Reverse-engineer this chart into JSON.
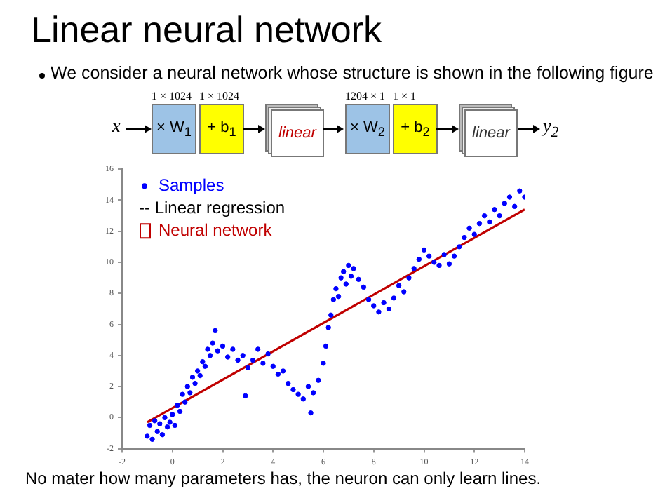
{
  "chart_data": {
    "type": "scatter",
    "title": "Linear neural network",
    "subtitle": "We consider a neural network whose structure is shown in the following figure",
    "annotations": [
      "-- Linear regression",
      "x",
      "1 × 1024",
      "× W$_{1}$",
      "1 × 1024",
      "+ b$_{1}$",
      "linear",
      "1204 × 1",
      "× W$_{2}$",
      "1 × 1",
      "+ b$_{2}$",
      "linear",
      "y$_{2}$",
      "No mater how many parameters has, the neuron can only learn lines."
    ],
    "xlim": [
      -2,
      14
    ],
    "xticks": [
      -2,
      0,
      2,
      4,
      6,
      8,
      10,
      12,
      14
    ],
    "ylim": [
      -2,
      16
    ],
    "yticks": [
      -2,
      0,
      2,
      4,
      6,
      8,
      10,
      12,
      14,
      16
    ],
    "grid": false,
    "legend": "top left",
    "series": [
      {
        "name": "Samples",
        "marker": "circle",
        "color": "#0000ff",
        "x": [
          -1,
          -0.9,
          -0.8,
          -0.7,
          -0.6,
          -0.5,
          -0.4,
          -0.3,
          -0.2,
          -0.1,
          0,
          0.1,
          0.2,
          0.3,
          0.4,
          0.5,
          0.6,
          0.7,
          0.8,
          0.9,
          1.0,
          1.1,
          1.2,
          1.3,
          1.4,
          1.5,
          1.6,
          1.7,
          1.8,
          2.0,
          2.2,
          2.4,
          2.6,
          2.8,
          2.9,
          3.0,
          3.2,
          3.4,
          3.6,
          3.8,
          4.0,
          4.2,
          4.4,
          4.6,
          4.8,
          5.0,
          5.2,
          5.4,
          5.5,
          5.6,
          5.8,
          6.0,
          6.1,
          6.2,
          6.3,
          6.4,
          6.5,
          6.6,
          6.7,
          6.8,
          6.9,
          7.0,
          7.1,
          7.2,
          7.4,
          7.6,
          7.8,
          8.0,
          8.2,
          8.4,
          8.6,
          8.8,
          9.0,
          9.2,
          9.4,
          9.6,
          9.8,
          10.0,
          10.2,
          10.4,
          10.6,
          10.8,
          11.0,
          11.2,
          11.4,
          11.6,
          11.8,
          12.0,
          12.2,
          12.4,
          12.6,
          12.8,
          13.0,
          13.2,
          13.4,
          13.6,
          13.8,
          14.0
        ],
        "values": [
          -1.2,
          -0.5,
          -1.4,
          -0.2,
          -0.9,
          -0.4,
          -1.1,
          0.0,
          -0.6,
          -0.3,
          0.2,
          -0.5,
          0.8,
          0.4,
          1.5,
          1.0,
          2.0,
          1.6,
          2.6,
          2.2,
          3.0,
          2.7,
          3.6,
          3.3,
          4.4,
          4.0,
          4.8,
          5.6,
          4.3,
          4.6,
          3.9,
          4.4,
          3.7,
          4.0,
          1.4,
          3.2,
          3.7,
          4.4,
          3.5,
          4.1,
          3.3,
          2.8,
          3.0,
          2.2,
          1.8,
          1.5,
          1.2,
          2.0,
          0.3,
          1.6,
          2.4,
          3.5,
          4.6,
          5.8,
          6.6,
          7.6,
          8.3,
          7.8,
          9.0,
          9.4,
          8.6,
          9.8,
          9.1,
          9.6,
          8.9,
          8.4,
          7.6,
          7.2,
          6.8,
          7.4,
          7.0,
          7.7,
          8.5,
          8.1,
          9.0,
          9.6,
          10.2,
          10.8,
          10.4,
          10.0,
          9.8,
          10.5,
          9.9,
          10.4,
          11.0,
          11.6,
          12.2,
          11.8,
          12.5,
          13.0,
          12.6,
          13.4,
          13.0,
          13.8,
          14.2,
          13.6,
          14.6,
          14.2
        ]
      },
      {
        "name": "Neural network",
        "type": "line",
        "marker": "none",
        "color": "#c00000",
        "x": [
          -1,
          14
        ],
        "values": [
          -0.3,
          13.4
        ]
      }
    ]
  }
}
